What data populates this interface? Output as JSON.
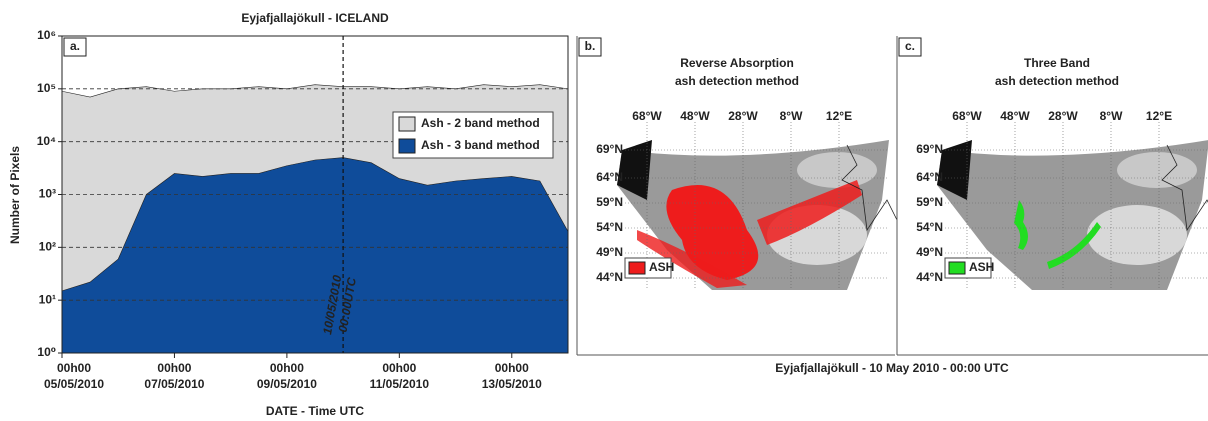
{
  "chart_data": {
    "type": "area",
    "title": "Eyjafjallajökull - ICELAND",
    "panel_label": "a.",
    "x_label": "DATE - Time UTC",
    "y_label": "Number of Pixels",
    "log_y": true,
    "grid": true,
    "legend": "upper right",
    "x": [
      "05/05/2010 00h00",
      "05/05/2010 12h00",
      "06/05/2010 00h00",
      "06/05/2010 12h00",
      "07/05/2010 00h00",
      "07/05/2010 12h00",
      "08/05/2010 00h00",
      "08/05/2010 12h00",
      "09/05/2010 00h00",
      "09/05/2010 12h00",
      "10/05/2010 00h00",
      "10/05/2010 12h00",
      "11/05/2010 00h00",
      "11/05/2010 12h00",
      "12/05/2010 00h00",
      "12/05/2010 12h00",
      "13/05/2010 00h00",
      "13/05/2010 12h00",
      "14/05/2010 00h00"
    ],
    "xlim": [
      "05/05/2010 00h00",
      "14/05/2010 00h00"
    ],
    "xticks": [
      {
        "value": "05/05/2010 00h00",
        "label": [
          "00h00",
          "05/05/2010"
        ]
      },
      {
        "value": "07/05/2010 00h00",
        "label": [
          "00h00",
          "07/05/2010"
        ]
      },
      {
        "value": "09/05/2010 00h00",
        "label": [
          "00h00",
          "09/05/2010"
        ]
      },
      {
        "value": "11/05/2010 00h00",
        "label": [
          "00h00",
          "11/05/2010"
        ]
      },
      {
        "value": "13/05/2010 00h00",
        "label": [
          "00h00",
          "13/05/2010"
        ]
      }
    ],
    "ylim": [
      1,
      1000000
    ],
    "yticks": [
      {
        "value": 1,
        "label": "10⁰"
      },
      {
        "value": 10,
        "label": "10¹"
      },
      {
        "value": 100,
        "label": "10²"
      },
      {
        "value": 1000,
        "label": "10³"
      },
      {
        "value": 10000,
        "label": "10⁴"
      },
      {
        "value": 100000,
        "label": "10⁵"
      },
      {
        "value": 1000000,
        "label": "10⁶"
      }
    ],
    "series": [
      {
        "name": "Ash - 2 band method",
        "color": "#d9d9d9",
        "values": [
          90000,
          70000,
          100000,
          110000,
          90000,
          100000,
          100000,
          110000,
          100000,
          120000,
          110000,
          110000,
          100000,
          110000,
          100000,
          120000,
          110000,
          120000,
          100000
        ]
      },
      {
        "name": "Ash - 3 band method",
        "color": "#0f4c9a",
        "values": [
          15,
          22,
          60,
          1000,
          2500,
          2200,
          2500,
          2500,
          3500,
          4500,
          5000,
          4000,
          2000,
          1500,
          1800,
          2000,
          2200,
          1800,
          200
        ]
      }
    ],
    "annotation": {
      "text": [
        "10/05/2010",
        "00:00UTC"
      ],
      "x": "10/05/2010 00h00"
    }
  },
  "maps": {
    "panels": [
      {
        "label": "b.",
        "title": [
          "Reverse Absorption",
          "ash detection method"
        ],
        "legend": "ASH",
        "color": "#ee1c1c"
      },
      {
        "label": "c.",
        "title": [
          "Three Band",
          "ash detection method"
        ],
        "legend": "ASH",
        "color": "#22dd22"
      }
    ],
    "lon_labels": [
      "68°W",
      "48°W",
      "28°W",
      "8°W",
      "12°E"
    ],
    "lat_labels": [
      "69°N",
      "64°N",
      "59°N",
      "54°N",
      "49°N",
      "44°N"
    ],
    "caption": "Eyjafjallajökull - 10 May 2010 - 00:00 UTC"
  }
}
